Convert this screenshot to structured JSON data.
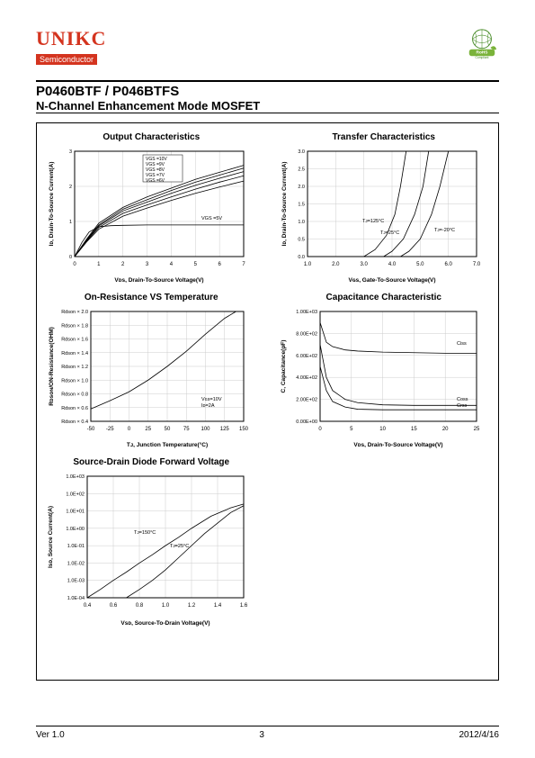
{
  "header": {
    "logo_text": "UNIKC",
    "logo_sub": "Semiconductor",
    "rohs_label": "RoHS",
    "rohs_sub": "Compliant"
  },
  "title": {
    "part_no": "P0460BTF / P046BTFS",
    "subtitle": "N-Channel Enhancement Mode MOSFET"
  },
  "charts": {
    "output": {
      "title": "Output Characteristics",
      "xlabel": "Vᴅs, Drain-To-Source Voltage(V)",
      "ylabel": "Iᴅ, Drain-To-Source Current(A)",
      "xlim": [
        0,
        7
      ],
      "xtick_step": 1,
      "ylim": [
        0,
        3
      ],
      "ytick_step": 1,
      "grid_color": "#cccccc",
      "axis_color": "#000000",
      "curve_labels": [
        "VGS =10V",
        "VGS =9V",
        "VGS =8V",
        "VGS =7V",
        "VGS =6V"
      ],
      "vgs5_label": "VGS =5V",
      "curves": [
        [
          [
            0,
            0
          ],
          [
            0.5,
            0.5
          ],
          [
            1,
            0.95
          ],
          [
            2,
            1.4
          ],
          [
            3,
            1.7
          ],
          [
            4,
            1.95
          ],
          [
            5,
            2.2
          ],
          [
            6,
            2.4
          ],
          [
            7,
            2.6
          ]
        ],
        [
          [
            0,
            0
          ],
          [
            0.5,
            0.48
          ],
          [
            1,
            0.9
          ],
          [
            2,
            1.35
          ],
          [
            3,
            1.62
          ],
          [
            4,
            1.88
          ],
          [
            5,
            2.12
          ],
          [
            6,
            2.32
          ],
          [
            7,
            2.52
          ]
        ],
        [
          [
            0,
            0
          ],
          [
            0.5,
            0.46
          ],
          [
            1,
            0.87
          ],
          [
            2,
            1.3
          ],
          [
            3,
            1.55
          ],
          [
            4,
            1.8
          ],
          [
            5,
            2.03
          ],
          [
            6,
            2.23
          ],
          [
            7,
            2.42
          ]
        ],
        [
          [
            0,
            0
          ],
          [
            0.5,
            0.44
          ],
          [
            1,
            0.83
          ],
          [
            2,
            1.23
          ],
          [
            3,
            1.47
          ],
          [
            4,
            1.7
          ],
          [
            5,
            1.92
          ],
          [
            6,
            2.12
          ],
          [
            7,
            2.3
          ]
        ],
        [
          [
            0,
            0
          ],
          [
            0.5,
            0.42
          ],
          [
            1,
            0.78
          ],
          [
            2,
            1.15
          ],
          [
            3,
            1.38
          ],
          [
            4,
            1.6
          ],
          [
            5,
            1.8
          ],
          [
            6,
            1.98
          ],
          [
            7,
            2.15
          ]
        ]
      ],
      "vgs5_curve": [
        [
          0,
          0
        ],
        [
          0.3,
          0.4
        ],
        [
          0.6,
          0.7
        ],
        [
          1,
          0.85
        ],
        [
          1.5,
          0.88
        ],
        [
          2,
          0.89
        ],
        [
          3,
          0.9
        ],
        [
          4,
          0.9
        ],
        [
          5,
          0.9
        ],
        [
          6,
          0.9
        ],
        [
          7,
          0.9
        ]
      ],
      "line_color": "#000000",
      "line_width": 0.8
    },
    "transfer": {
      "title": "Transfer Characteristics",
      "xlabel": "Vɢs, Gate-To-Source Voltage(V)",
      "ylabel": "Iᴅ, Drain-To-Source Current(A)",
      "xlim": [
        1.0,
        7.0
      ],
      "xticks": [
        1.0,
        2.0,
        3.0,
        4.0,
        5.0,
        6.0,
        7.0
      ],
      "ylim": [
        0,
        3
      ],
      "ytick_step": 0.5,
      "grid_color": "#cccccc",
      "curve_labels": [
        "Tᴊ=125°C",
        "Tᴊ=25°C",
        "Tᴊ=-20°C"
      ],
      "curves": [
        [
          [
            3.0,
            0
          ],
          [
            3.4,
            0.2
          ],
          [
            3.8,
            0.6
          ],
          [
            4.1,
            1.2
          ],
          [
            4.3,
            2.0
          ],
          [
            4.5,
            3.0
          ]
        ],
        [
          [
            3.7,
            0
          ],
          [
            4.0,
            0.15
          ],
          [
            4.4,
            0.5
          ],
          [
            4.8,
            1.2
          ],
          [
            5.1,
            2.0
          ],
          [
            5.3,
            3.0
          ]
        ],
        [
          [
            4.3,
            0
          ],
          [
            4.6,
            0.15
          ],
          [
            5.0,
            0.5
          ],
          [
            5.4,
            1.2
          ],
          [
            5.7,
            2.0
          ],
          [
            6.0,
            3.0
          ]
        ]
      ],
      "line_color": "#000000",
      "line_width": 0.8
    },
    "resistance": {
      "title": "On-Resistance VS Temperature",
      "xlabel": "Tᴊ, Junction Temperature(°C)",
      "ylabel": "Rᴅsᴏɴ/ON-Resistance(OHM)",
      "xlim": [
        -50,
        150
      ],
      "xtick_step": 25,
      "ylim": [
        0.4,
        2.0
      ],
      "ytick_step": 0.2,
      "ytick_labels": [
        "Rdson × 0.4",
        "Rdson × 0.6",
        "Rdson × 0.8",
        "Rdson × 1.0",
        "Rdson × 1.2",
        "Rdson × 1.4",
        "Rdson × 1.6",
        "Rdson × 1.8",
        "Rdson × 2.0"
      ],
      "grid_color": "#cccccc",
      "conditions": "Vɢs=10V\nIᴅ=2A",
      "curve": [
        [
          -50,
          0.58
        ],
        [
          -25,
          0.7
        ],
        [
          0,
          0.83
        ],
        [
          25,
          1.0
        ],
        [
          50,
          1.2
        ],
        [
          75,
          1.42
        ],
        [
          100,
          1.67
        ],
        [
          125,
          1.9
        ],
        [
          140,
          2.0
        ]
      ],
      "line_color": "#000000",
      "line_width": 0.8
    },
    "capacitance": {
      "title": "Capacitance Characteristic",
      "xlabel": "Vᴅs, Drain-To-Source Voltage(V)",
      "ylabel": "C, Capacitance(pF)",
      "xlim": [
        0,
        25
      ],
      "xtick_step": 5,
      "ylim_log": [
        10.0,
        1000.0
      ],
      "yticks": [
        "0.00E+00",
        "2.00E+02",
        "4.00E+02",
        "6.00E+02",
        "8.00E+02",
        "1.00E+03"
      ],
      "grid_color": "#cccccc",
      "curve_labels": [
        "Ciss",
        "Coss",
        "Crss"
      ],
      "curves": [
        [
          [
            0,
            900
          ],
          [
            1,
            720
          ],
          [
            2,
            680
          ],
          [
            4,
            650
          ],
          [
            6,
            640
          ],
          [
            10,
            630
          ],
          [
            15,
            625
          ],
          [
            20,
            620
          ],
          [
            25,
            620
          ]
        ],
        [
          [
            0,
            700
          ],
          [
            1,
            400
          ],
          [
            2,
            280
          ],
          [
            4,
            200
          ],
          [
            6,
            170
          ],
          [
            10,
            150
          ],
          [
            15,
            145
          ],
          [
            20,
            145
          ],
          [
            25,
            145
          ]
        ],
        [
          [
            0,
            500
          ],
          [
            1,
            280
          ],
          [
            2,
            180
          ],
          [
            4,
            130
          ],
          [
            6,
            110
          ],
          [
            10,
            105
          ],
          [
            15,
            105
          ],
          [
            20,
            105
          ],
          [
            25,
            105
          ]
        ]
      ],
      "line_color": "#000000",
      "line_width": 0.8
    },
    "diode": {
      "title": "Source-Drain Diode Forward Voltage",
      "xlabel": "Vsᴅ, Source-To-Drain Voltage(V)",
      "ylabel": "Isᴅ, Source Current(A)",
      "xlim": [
        0.4,
        1.6
      ],
      "xtick_step": 0.2,
      "ylim_log": [
        0.0001,
        1000.0
      ],
      "yticks": [
        "1.0E-04",
        "1.0E-03",
        "1.0E-02",
        "1.0E-01",
        "1.0E+00",
        "1.0E+01",
        "1.0E+02",
        "1.0E+03"
      ],
      "grid_color": "#cccccc",
      "curve_labels": [
        "Tᴊ=150°C",
        "Tᴊ=25°C"
      ],
      "curves": [
        [
          [
            0.4,
            0.0001
          ],
          [
            0.5,
            0.0003
          ],
          [
            0.6,
            0.001
          ],
          [
            0.7,
            0.003
          ],
          [
            0.8,
            0.01
          ],
          [
            0.9,
            0.03
          ],
          [
            1.0,
            0.1
          ],
          [
            1.1,
            0.3
          ],
          [
            1.2,
            1
          ],
          [
            1.35,
            5
          ],
          [
            1.5,
            15
          ],
          [
            1.6,
            25
          ]
        ],
        [
          [
            0.7,
            0.0001
          ],
          [
            0.8,
            0.0003
          ],
          [
            0.9,
            0.001
          ],
          [
            1.0,
            0.004
          ],
          [
            1.1,
            0.02
          ],
          [
            1.2,
            0.1
          ],
          [
            1.3,
            0.5
          ],
          [
            1.4,
            2
          ],
          [
            1.5,
            8
          ],
          [
            1.6,
            20
          ]
        ]
      ],
      "line_color": "#000000",
      "line_width": 0.8
    }
  },
  "footer": {
    "version": "Ver 1.0",
    "page": "3",
    "date": "2012/4/16"
  }
}
